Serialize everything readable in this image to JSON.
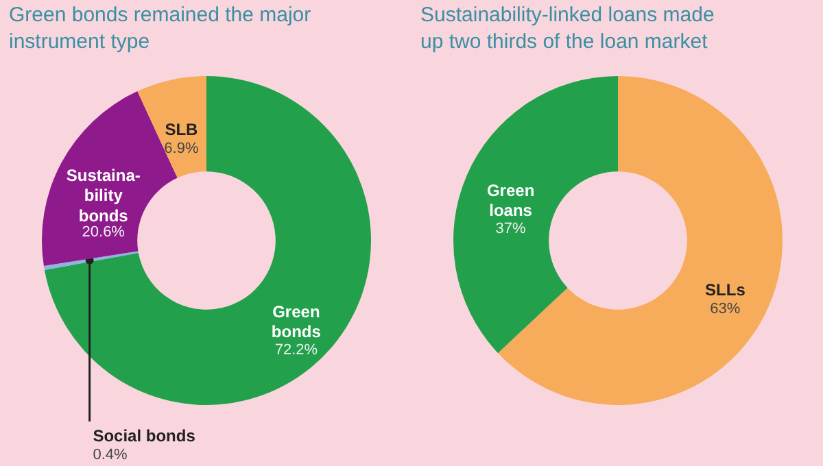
{
  "chart_data": [
    {
      "type": "donut",
      "title": "Green bonds remained the major\ninstrument type",
      "categories": [
        "Green\nbonds",
        "Social bonds",
        "Sustaina-\nbility\nbonds",
        "SLB"
      ],
      "values": [
        72.2,
        0.4,
        20.6,
        6.9
      ],
      "value_labels": [
        "72.2%",
        "0.4%",
        "20.6%",
        "6.9%"
      ],
      "colors": [
        "#22a04b",
        "#8db4e2",
        "#8e1a8c",
        "#f7ac5c"
      ]
    },
    {
      "type": "donut",
      "title": "Sustainability-linked loans made\nup two thirds of the loan market",
      "categories": [
        "SLLs",
        "Green\nloans"
      ],
      "values": [
        63,
        37
      ],
      "value_labels": [
        "63%",
        "37%"
      ],
      "colors": [
        "#f7ac5c",
        "#22a04b"
      ]
    }
  ]
}
